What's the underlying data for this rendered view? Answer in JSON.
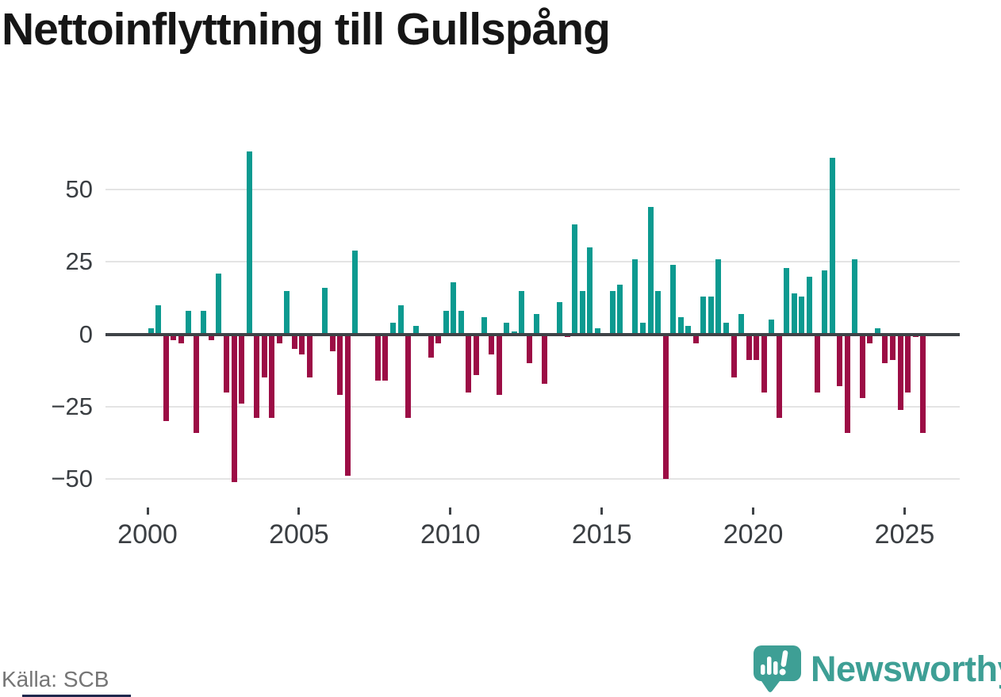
{
  "header": {
    "title": "Nettoinflyttning till Gullspång"
  },
  "footer": {
    "source": "Källa: SCB",
    "brand": "Newsworthy"
  },
  "colors": {
    "positive": "#0c9a90",
    "negative": "#9c0d45",
    "axis": "#3f4347",
    "grid": "#e4e4e4",
    "title": "#161616",
    "tick_label": "#3a3e42",
    "source_text": "#757575",
    "brand_teal": "#3e9f95",
    "accent_strip": "#20294e",
    "background": "#ffffff"
  },
  "chart_data": {
    "type": "bar",
    "title": "Nettoinflyttning till Gullspång",
    "x_start": "2000 Q1",
    "frequency": "quarterly",
    "values": [
      2,
      10,
      -30,
      -2,
      -3,
      8,
      -34,
      8,
      -2,
      21,
      -20,
      -51,
      -24,
      63,
      -29,
      -15,
      -29,
      -3,
      15,
      -5,
      -7,
      -15,
      0,
      16,
      -6,
      -21,
      -49,
      29,
      0,
      0,
      -16,
      -16,
      4,
      10,
      -29,
      3,
      0,
      -8,
      -3,
      8,
      18,
      8,
      -20,
      -14,
      6,
      -7,
      -21,
      4,
      1,
      15,
      -10,
      7,
      -17,
      0,
      11,
      -1,
      38,
      15,
      30,
      2,
      0,
      15,
      17,
      0,
      26,
      4,
      44,
      15,
      -50,
      24,
      6,
      3,
      -3,
      13,
      13,
      26,
      4,
      -15,
      7,
      -9,
      -9,
      -20,
      5,
      -29,
      23,
      14,
      13,
      20,
      -20,
      22,
      61,
      -18,
      -34,
      26,
      -22,
      -3,
      2,
      -10,
      -9,
      -26,
      -20,
      -1,
      -34
    ],
    "start_year": 2000,
    "end_label": "2025 Q3",
    "y_ticks": [
      50,
      25,
      0,
      -25,
      -50
    ],
    "y_tick_labels": [
      "50",
      "25",
      "0",
      "−25",
      "−50"
    ],
    "x_tick_labels": [
      "2000",
      "2005",
      "2010",
      "2015",
      "2020",
      "2025"
    ],
    "x_tick_quarter_offsets": [
      0,
      20,
      40,
      60,
      80,
      100
    ],
    "ylim": [
      -55,
      66
    ],
    "grid": true,
    "legend": false,
    "xlabel": "",
    "ylabel": ""
  }
}
